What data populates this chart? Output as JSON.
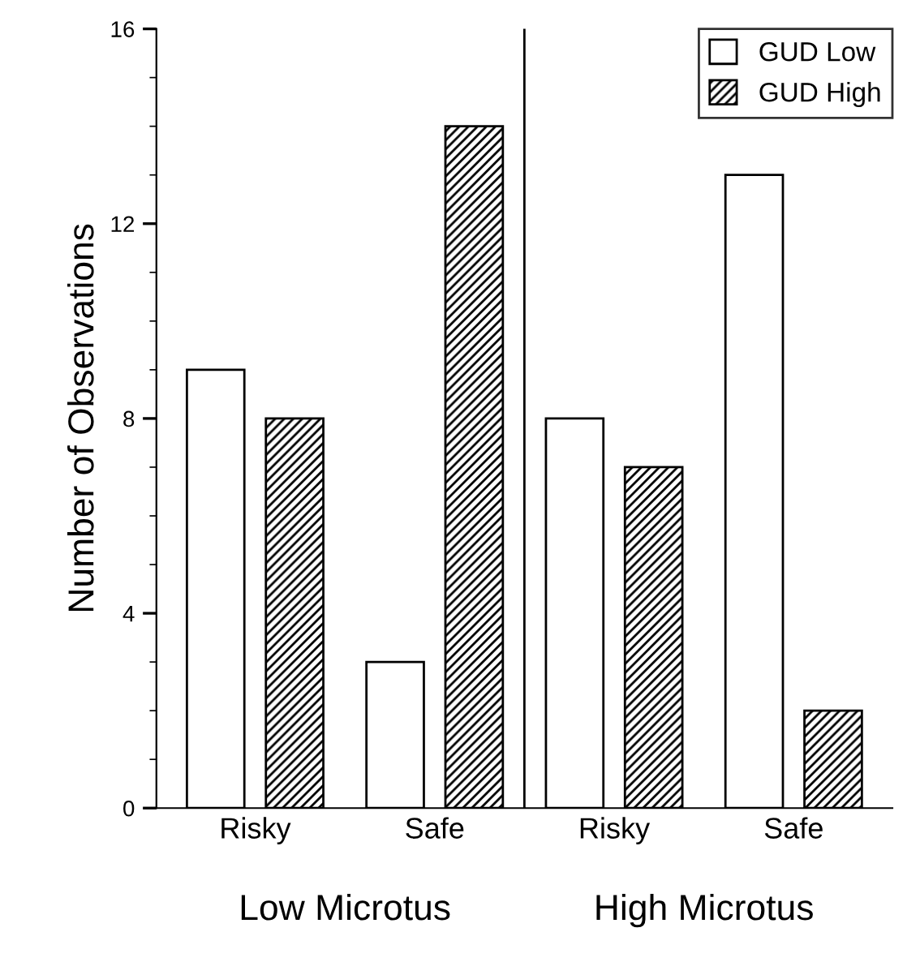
{
  "chart_data": {
    "type": "bar",
    "ylabel": "Number of Observations",
    "categories": [
      "Risky",
      "Safe",
      "Risky",
      "Safe"
    ],
    "series": [
      {
        "name": "GUD Low",
        "color": "#ffffff",
        "values": [
          9,
          3,
          8,
          13
        ]
      },
      {
        "name": "GUD High",
        "color": "#000000",
        "values": [
          8,
          14,
          7,
          2
        ]
      }
    ],
    "ylim": [
      0,
      16
    ],
    "yticks": [
      0,
      4,
      8,
      12,
      16
    ],
    "grid": false,
    "legend": "top right",
    "annotations": [
      "Low Microtus",
      "High Microtus"
    ]
  }
}
